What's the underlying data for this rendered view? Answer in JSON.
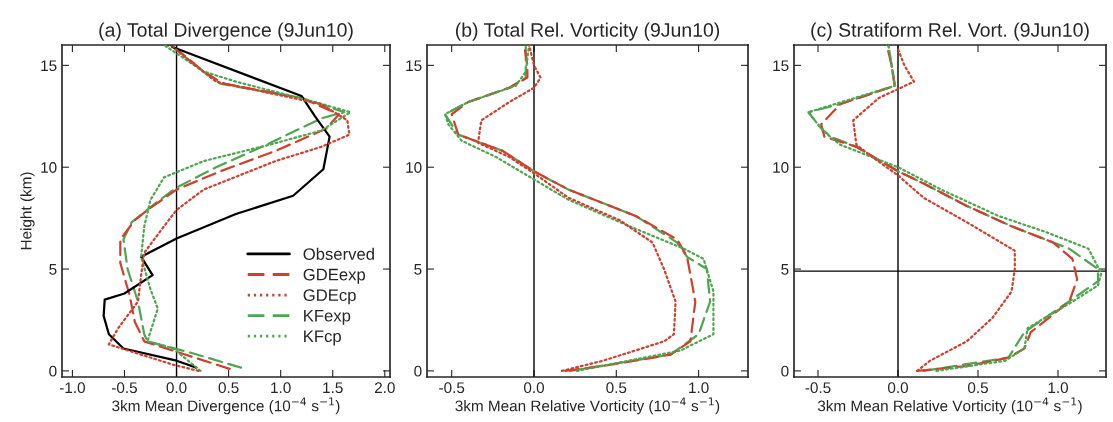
{
  "chart_data": [
    {
      "type": "line",
      "title": "(a) Total Divergence (9Jun10)",
      "xlabel": "3km Mean Divergence (10$^{−4}$ s$^{−1}$)",
      "ylabel": "Height (km)",
      "xlim": [
        -1.1,
        2.05
      ],
      "xticks": [
        {
          "value": -1.0,
          "label": "-1.0"
        },
        {
          "value": -0.5,
          "label": "-0.5"
        },
        {
          "value": 0.0,
          "label": "0.0"
        },
        {
          "value": 0.5,
          "label": "0.5"
        },
        {
          "value": 1.0,
          "label": "1.0"
        },
        {
          "value": 1.5,
          "label": "1.5"
        },
        {
          "value": 2.0,
          "label": "2.0"
        }
      ],
      "ylim": [
        -0.3,
        16
      ],
      "yticks": [
        0,
        5,
        10,
        15
      ],
      "grid": false,
      "legend": "bottom right",
      "ref_lines": [
        {
          "axis": "x",
          "value": 0,
          "color": "#000000"
        }
      ],
      "series": [
        {
          "name": "Observed",
          "color": "#000000",
          "line_style": "solid",
          "x": [
            0.19,
            0,
            -0.51,
            -0.65,
            -0.7,
            -0.69,
            -0.5,
            -0.23,
            -0.34,
            0,
            0.57,
            1.12,
            1.41,
            1.47,
            1.33,
            1.2,
            -0.04
          ],
          "values": [
            0.16,
            0.5,
            1.1,
            1.8,
            2.7,
            3.5,
            3.8,
            4.7,
            5.6,
            6.5,
            7.7,
            8.6,
            9.9,
            11.5,
            12.5,
            13.5,
            15.9
          ]
        },
        {
          "name": "GDEexp",
          "color": "#d0402e",
          "line_style": "dashed",
          "x": [
            0.51,
            -0.31,
            -0.4,
            -0.45,
            -0.54,
            -0.54,
            -0.4,
            -0.28,
            0,
            0.42,
            0.95,
            1.44,
            1.56,
            1.2,
            0.45,
            0.26,
            0,
            -0.09
          ],
          "values": [
            0.1,
            1.45,
            2.4,
            3.7,
            5.3,
            6.45,
            7.4,
            7.9,
            8.9,
            9.8,
            10.8,
            11.9,
            12.6,
            13.4,
            14.1,
            14.7,
            15.8,
            16
          ]
        },
        {
          "name": "GDEcp",
          "color": "#d0402e",
          "line_style": "dotted",
          "x": [
            0.21,
            -0.03,
            -0.65,
            -0.56,
            -0.37,
            -0.34,
            -0.31,
            -0.15,
            0,
            0.26,
            0.95,
            1.39,
            1.66,
            1.64,
            1.39,
            0.38,
            0.13,
            -0.03
          ],
          "values": [
            0,
            0.3,
            1.3,
            2.1,
            3.4,
            4.7,
            5.8,
            6.9,
            7.9,
            8.9,
            10.3,
            11,
            11.6,
            12.3,
            13.1,
            14.2,
            15.2,
            15.9
          ]
        },
        {
          "name": "KFexp",
          "color": "#4fa650",
          "line_style": "dashed",
          "x": [
            0.62,
            0.13,
            -0.28,
            -0.31,
            -0.37,
            -0.47,
            -0.51,
            -0.43,
            -0.21,
            0,
            0.38,
            0.82,
            1.39,
            1.61,
            1.2,
            0.42,
            0.23,
            -0.06
          ],
          "values": [
            0.16,
            0.9,
            1.45,
            1.8,
            3.4,
            5.0,
            6.45,
            7.3,
            8.2,
            9.0,
            10.0,
            11.0,
            12.4,
            12.7,
            13.4,
            14.1,
            14.8,
            16
          ]
        },
        {
          "name": "KFcp",
          "color": "#4fa650",
          "line_style": "dotted",
          "x": [
            0.23,
            -0.03,
            -0.28,
            -0.18,
            -0.25,
            -0.34,
            -0.31,
            -0.25,
            -0.12,
            0.26,
            0.89,
            1.39,
            1.67,
            1.33,
            0.57,
            0.26,
            -0.12
          ],
          "values": [
            0,
            1.1,
            1.45,
            3.06,
            4.0,
            5.6,
            7.1,
            8.4,
            9.5,
            10.3,
            11.1,
            11.8,
            12.7,
            13.2,
            14.2,
            14.7,
            16
          ]
        }
      ]
    },
    {
      "type": "line",
      "title": "(b) Total Rel. Vorticity (9Jun10)",
      "xlabel": "3km Mean Relative Vorticity (10$^{−4}$ s$^{−1}$)",
      "xlim": [
        -0.65,
        1.3
      ],
      "xticks": [
        {
          "value": -0.5,
          "label": "-0.5"
        },
        {
          "value": 0.0,
          "label": "0.0"
        },
        {
          "value": 0.5,
          "label": "0.5"
        },
        {
          "value": 1.0,
          "label": "1.0"
        }
      ],
      "ylim": [
        -0.3,
        16
      ],
      "yticks": [
        0,
        5,
        10,
        15
      ],
      "grid": false,
      "ref_lines": [
        {
          "axis": "x",
          "value": 0,
          "color": "#000000"
        }
      ],
      "series": [
        {
          "color": "#d0402e",
          "line_style": "dashed",
          "x": [
            0.19,
            0.42,
            0.83,
            0.95,
            0.98,
            0.93,
            0.87,
            0.62,
            0.21,
            0,
            -0.19,
            -0.46,
            -0.5,
            -0.4,
            -0.15,
            -0.04,
            -0.04,
            -0.06
          ],
          "values": [
            0,
            0.24,
            0.8,
            1.45,
            3.4,
            5.6,
            6.45,
            7.6,
            8.9,
            9.8,
            10.8,
            11.6,
            12.6,
            13.2,
            13.9,
            14.4,
            15.0,
            16
          ]
        },
        {
          "color": "#d0402e",
          "line_style": "dotted",
          "x": [
            0.17,
            0.42,
            0.79,
            0.85,
            0.86,
            0.79,
            0.72,
            0.52,
            0.21,
            0,
            -0.15,
            -0.34,
            -0.32,
            -0.15,
            0,
            0.04,
            0,
            -0.03
          ],
          "values": [
            0,
            0.5,
            1.45,
            1.8,
            3.4,
            5.0,
            6.3,
            7.4,
            8.5,
            9.7,
            10.5,
            11.2,
            12.3,
            13.2,
            13.9,
            14.4,
            15,
            16
          ]
        },
        {
          "color": "#4fa650",
          "line_style": "dashed",
          "x": [
            0.22,
            0.83,
            1.0,
            1.07,
            1.05,
            0.93,
            0.87,
            0.62,
            0.21,
            0,
            -0.19,
            -0.46,
            -0.54,
            -0.4,
            -0.15,
            -0.05,
            -0.05,
            -0.05
          ],
          "values": [
            0,
            0.8,
            1.8,
            3.4,
            5.0,
            5.6,
            6.3,
            7.6,
            8.9,
            9.8,
            10.8,
            11.6,
            12.6,
            13.2,
            13.9,
            14.4,
            15.0,
            16
          ]
        },
        {
          "color": "#4fa650",
          "line_style": "dotted",
          "x": [
            0.26,
            0.89,
            1.09,
            1.09,
            1.03,
            0.91,
            0.58,
            0.21,
            0,
            -0.23,
            -0.44,
            -0.52,
            -0.54,
            -0.4,
            -0.11,
            -0.05,
            -0.03
          ],
          "values": [
            0,
            1.0,
            1.8,
            3.9,
            5.5,
            6.0,
            7.1,
            8.4,
            9.4,
            10.5,
            11.3,
            12.1,
            12.6,
            13.2,
            14.0,
            14.7,
            16
          ]
        }
      ]
    },
    {
      "type": "line",
      "title": "(c) Stratiform Rel. Vort. (9Jun10)",
      "xlabel": "3km Mean Relative Vorticity (10$^{−4}$ s$^{−1}$)",
      "xlim": [
        -0.65,
        1.3
      ],
      "xticks": [
        {
          "value": -0.5,
          "label": "-0.5"
        },
        {
          "value": 0.0,
          "label": "0.0"
        },
        {
          "value": 0.5,
          "label": "0.5"
        },
        {
          "value": 1.0,
          "label": "1.0"
        }
      ],
      "ylim": [
        -0.3,
        16
      ],
      "yticks": [
        0,
        5,
        10,
        15
      ],
      "grid": false,
      "ref_lines": [
        {
          "axis": "x",
          "value": 0,
          "color": "#000000"
        },
        {
          "axis": "y",
          "value": 4.9,
          "color": "#000000"
        }
      ],
      "series": [
        {
          "color": "#d0402e",
          "line_style": "dashed",
          "x": [
            0.12,
            0.43,
            0.69,
            0.79,
            0.83,
            1.07,
            1.12,
            1.09,
            0.97,
            0.71,
            0.43,
            0.16,
            0,
            -0.26,
            -0.46,
            -0.48,
            -0.36,
            -0.02,
            -0.04,
            -0.07
          ],
          "values": [
            0,
            0.24,
            0.65,
            1.1,
            1.9,
            3.4,
            4.5,
            5.5,
            6.3,
            7.1,
            8.1,
            9.2,
            9.8,
            11.0,
            11.5,
            12.1,
            13.1,
            14.0,
            15.0,
            16
          ]
        },
        {
          "color": "#d0402e",
          "line_style": "dotted",
          "x": [
            0.12,
            0.2,
            0.43,
            0.59,
            0.71,
            0.73,
            0.73,
            0.43,
            0.16,
            0,
            -0.16,
            -0.26,
            -0.28,
            -0.12,
            0.1,
            0.04,
            0
          ],
          "values": [
            0,
            0.5,
            1.45,
            2.6,
            3.9,
            5.0,
            5.9,
            7.3,
            8.5,
            9.6,
            10.5,
            11.1,
            12.3,
            13.4,
            14.2,
            15.0,
            15.8
          ]
        },
        {
          "color": "#4fa650",
          "line_style": "dashed",
          "x": [
            0.16,
            0.69,
            0.79,
            1.03,
            1.25,
            1.25,
            1.07,
            0.71,
            0.43,
            0.16,
            0,
            -0.26,
            -0.42,
            -0.48,
            -0.56,
            -0.36,
            -0.02,
            -0.04,
            -0.06
          ],
          "values": [
            0,
            0.65,
            1.9,
            3.2,
            4.4,
            5.0,
            6.0,
            7.1,
            8.1,
            9.2,
            9.8,
            11.0,
            11.5,
            11.9,
            12.7,
            13.1,
            14.0,
            15.0,
            16
          ]
        },
        {
          "color": "#4fa650",
          "line_style": "dotted",
          "x": [
            0.24,
            0.67,
            0.79,
            0.81,
            1.09,
            1.25,
            1.27,
            1.19,
            0.93,
            0.63,
            0.27,
            0,
            -0.36,
            -0.44,
            -0.5,
            -0.56,
            -0.02,
            -0.04,
            -0.06
          ],
          "values": [
            0,
            0.5,
            1.1,
            2.1,
            3.4,
            4.2,
            4.8,
            6.0,
            6.8,
            7.6,
            8.9,
            10.0,
            11.1,
            11.6,
            12.1,
            12.7,
            14.0,
            15.0,
            16
          ]
        }
      ]
    }
  ]
}
